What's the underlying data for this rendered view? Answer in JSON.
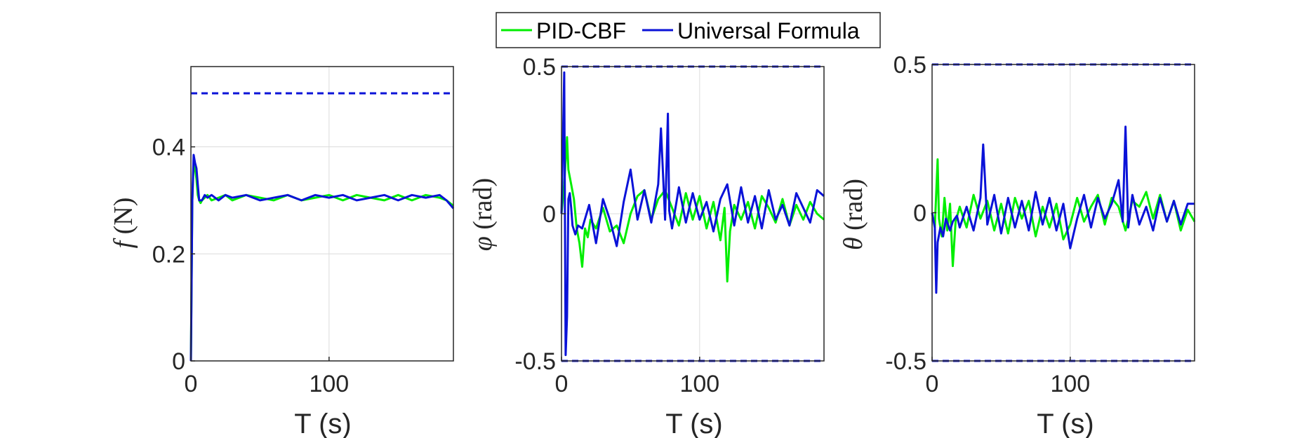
{
  "colors": {
    "pid": "#00ee00",
    "uf": "#0a12d8",
    "bound": "#0a12d8",
    "grid": "#dcdcdc",
    "axis": "#262626"
  },
  "legend": {
    "location": "top-center",
    "entries": [
      "PID-CBF",
      "Universal Formula"
    ]
  },
  "chart_data": [
    {
      "type": "line",
      "title": "",
      "xlabel": "T (s)",
      "ylabel": "f (N)",
      "ylabel_symbol": "f",
      "ylabel_unit": " (N)",
      "xlim": [
        0,
        190
      ],
      "ylim": [
        0,
        0.55
      ],
      "xticks": [
        0,
        100
      ],
      "xtick_labels": [
        "0",
        "100"
      ],
      "yticks": [
        0,
        0.2,
        0.4
      ],
      "ytick_labels": [
        "0",
        "0.2",
        "0.4"
      ],
      "grid": true,
      "bounds": [
        0.5
      ],
      "series": [
        {
          "name": "PID-CBF",
          "x": [
            0,
            1,
            2,
            3,
            4,
            5,
            6,
            7,
            8,
            10,
            12,
            15,
            20,
            25,
            30,
            40,
            50,
            60,
            70,
            80,
            90,
            100,
            110,
            120,
            130,
            140,
            150,
            160,
            170,
            180,
            185,
            190
          ],
          "values": [
            0,
            0.3,
            0.37,
            0.36,
            0.34,
            0.31,
            0.3,
            0.295,
            0.3,
            0.305,
            0.31,
            0.3,
            0.305,
            0.31,
            0.3,
            0.31,
            0.305,
            0.3,
            0.31,
            0.3,
            0.305,
            0.31,
            0.3,
            0.31,
            0.305,
            0.3,
            0.31,
            0.3,
            0.31,
            0.305,
            0.3,
            0.29
          ]
        },
        {
          "name": "Universal Formula",
          "x": [
            0,
            1,
            2,
            3,
            4,
            5,
            6,
            7,
            8,
            10,
            12,
            15,
            20,
            25,
            30,
            40,
            50,
            60,
            70,
            80,
            90,
            100,
            110,
            120,
            130,
            140,
            150,
            160,
            170,
            180,
            185,
            190
          ],
          "values": [
            0,
            0.3,
            0.385,
            0.37,
            0.36,
            0.33,
            0.3,
            0.3,
            0.3,
            0.31,
            0.305,
            0.31,
            0.3,
            0.31,
            0.305,
            0.31,
            0.3,
            0.305,
            0.31,
            0.3,
            0.31,
            0.305,
            0.31,
            0.3,
            0.305,
            0.31,
            0.3,
            0.31,
            0.305,
            0.31,
            0.3,
            0.285
          ]
        }
      ]
    },
    {
      "type": "line",
      "title": "",
      "xlabel": "T (s)",
      "ylabel": "φ (rad)",
      "ylabel_symbol": "φ",
      "ylabel_unit": " (rad)",
      "xlim": [
        0,
        190
      ],
      "ylim": [
        -0.5,
        0.5
      ],
      "xticks": [
        0,
        100
      ],
      "xtick_labels": [
        "0",
        "100"
      ],
      "yticks": [
        -0.5,
        0,
        0.5
      ],
      "ytick_labels": [
        "-0.5",
        "0",
        "0.5"
      ],
      "grid": true,
      "bounds": [
        0.5,
        -0.5
      ],
      "series": [
        {
          "name": "PID-CBF",
          "x": [
            0,
            2,
            4,
            5,
            7,
            9,
            11,
            13,
            15,
            17,
            19,
            21,
            25,
            30,
            35,
            40,
            45,
            50,
            55,
            60,
            65,
            70,
            75,
            80,
            85,
            90,
            95,
            100,
            105,
            110,
            115,
            118,
            120,
            122,
            125,
            130,
            135,
            140,
            145,
            150,
            155,
            160,
            165,
            170,
            175,
            180,
            185,
            190
          ],
          "values": [
            0,
            0.1,
            0.26,
            0.15,
            0.1,
            0.05,
            -0.05,
            -0.1,
            -0.18,
            -0.05,
            -0.08,
            -0.02,
            -0.05,
            0.02,
            -0.06,
            -0.04,
            -0.1,
            0.0,
            0.06,
            0.08,
            -0.02,
            0.05,
            0.08,
            0.02,
            -0.04,
            0.07,
            -0.02,
            0.06,
            -0.05,
            0.04,
            -0.09,
            0.02,
            -0.23,
            -0.06,
            0.03,
            -0.02,
            0.04,
            -0.05,
            0.06,
            0.02,
            -0.03,
            0.05,
            -0.04,
            0.03,
            -0.02,
            0.04,
            0.0,
            -0.02
          ]
        },
        {
          "name": "Universal Formula",
          "x": [
            0,
            2,
            3,
            4,
            5,
            6,
            7,
            8,
            10,
            12,
            15,
            20,
            25,
            30,
            35,
            40,
            45,
            50,
            55,
            60,
            65,
            70,
            72,
            75,
            77,
            78,
            80,
            85,
            90,
            95,
            100,
            105,
            110,
            115,
            120,
            125,
            130,
            135,
            140,
            145,
            150,
            155,
            160,
            165,
            170,
            175,
            180,
            185,
            190
          ],
          "values": [
            0,
            0.48,
            -0.48,
            -0.35,
            0.05,
            0.07,
            0.02,
            -0.04,
            -0.07,
            -0.04,
            -0.05,
            0.03,
            -0.1,
            0.05,
            -0.02,
            -0.11,
            0.04,
            0.15,
            -0.02,
            0.08,
            -0.03,
            0.1,
            0.29,
            -0.02,
            0.34,
            0.01,
            -0.05,
            0.09,
            -0.03,
            0.07,
            -0.02,
            0.04,
            -0.06,
            0.05,
            0.1,
            -0.04,
            0.09,
            -0.03,
            0.06,
            -0.05,
            0.08,
            -0.02,
            0.03,
            -0.04,
            0.07,
            0.02,
            -0.03,
            0.08,
            0.06
          ]
        }
      ]
    },
    {
      "type": "line",
      "title": "",
      "xlabel": "T (s)",
      "ylabel": "θ (rad)",
      "ylabel_symbol": "θ",
      "ylabel_unit": " (rad)",
      "xlim": [
        0,
        190
      ],
      "ylim": [
        -0.5,
        0.5
      ],
      "xticks": [
        0,
        100
      ],
      "xtick_labels": [
        "0",
        "100"
      ],
      "yticks": [
        -0.5,
        0,
        0.5
      ],
      "ytick_labels": [
        "-0.5",
        "0",
        "0.5"
      ],
      "grid": true,
      "bounds": [
        0.5,
        -0.5
      ],
      "series": [
        {
          "name": "PID-CBF",
          "x": [
            0,
            2,
            4,
            5,
            7,
            9,
            11,
            13,
            15,
            17,
            20,
            25,
            30,
            35,
            40,
            45,
            50,
            55,
            60,
            65,
            70,
            75,
            80,
            85,
            90,
            95,
            100,
            105,
            110,
            115,
            120,
            125,
            130,
            135,
            140,
            145,
            150,
            155,
            160,
            165,
            170,
            175,
            180,
            185,
            190
          ],
          "values": [
            0,
            -0.05,
            0.18,
            -0.02,
            -0.08,
            0.05,
            -0.06,
            0.03,
            -0.18,
            -0.03,
            0.02,
            -0.05,
            0.06,
            -0.02,
            0.04,
            -0.06,
            0.03,
            -0.07,
            0.05,
            -0.02,
            0.04,
            -0.08,
            0.02,
            -0.05,
            0.03,
            -0.09,
            -0.04,
            0.05,
            -0.03,
            0.02,
            0.06,
            -0.04,
            0.05,
            0.02,
            -0.06,
            0.04,
            0.02,
            0.07,
            -0.02,
            0.06,
            -0.03,
            0.04,
            -0.06,
            0.01,
            -0.03
          ]
        },
        {
          "name": "Universal Formula",
          "x": [
            0,
            2,
            3,
            4,
            6,
            8,
            10,
            13,
            15,
            18,
            20,
            25,
            30,
            35,
            37,
            40,
            45,
            50,
            55,
            60,
            65,
            70,
            75,
            80,
            85,
            90,
            95,
            100,
            105,
            110,
            115,
            120,
            125,
            130,
            135,
            138,
            140,
            142,
            145,
            150,
            155,
            160,
            165,
            170,
            175,
            180,
            185,
            190
          ],
          "values": [
            0,
            -0.05,
            -0.27,
            -0.1,
            -0.05,
            -0.08,
            -0.02,
            -0.06,
            -0.03,
            -0.01,
            -0.05,
            0.02,
            -0.06,
            0.05,
            0.23,
            -0.04,
            0.06,
            -0.07,
            0.05,
            -0.05,
            0.04,
            -0.06,
            0.07,
            -0.04,
            0.05,
            -0.06,
            0.03,
            -0.12,
            -0.02,
            0.06,
            -0.05,
            0.05,
            -0.02,
            0.03,
            0.11,
            -0.03,
            0.29,
            -0.05,
            0.06,
            -0.04,
            0.02,
            -0.06,
            0.05,
            -0.03,
            0.04,
            -0.04,
            0.03,
            0.03
          ]
        }
      ]
    }
  ]
}
